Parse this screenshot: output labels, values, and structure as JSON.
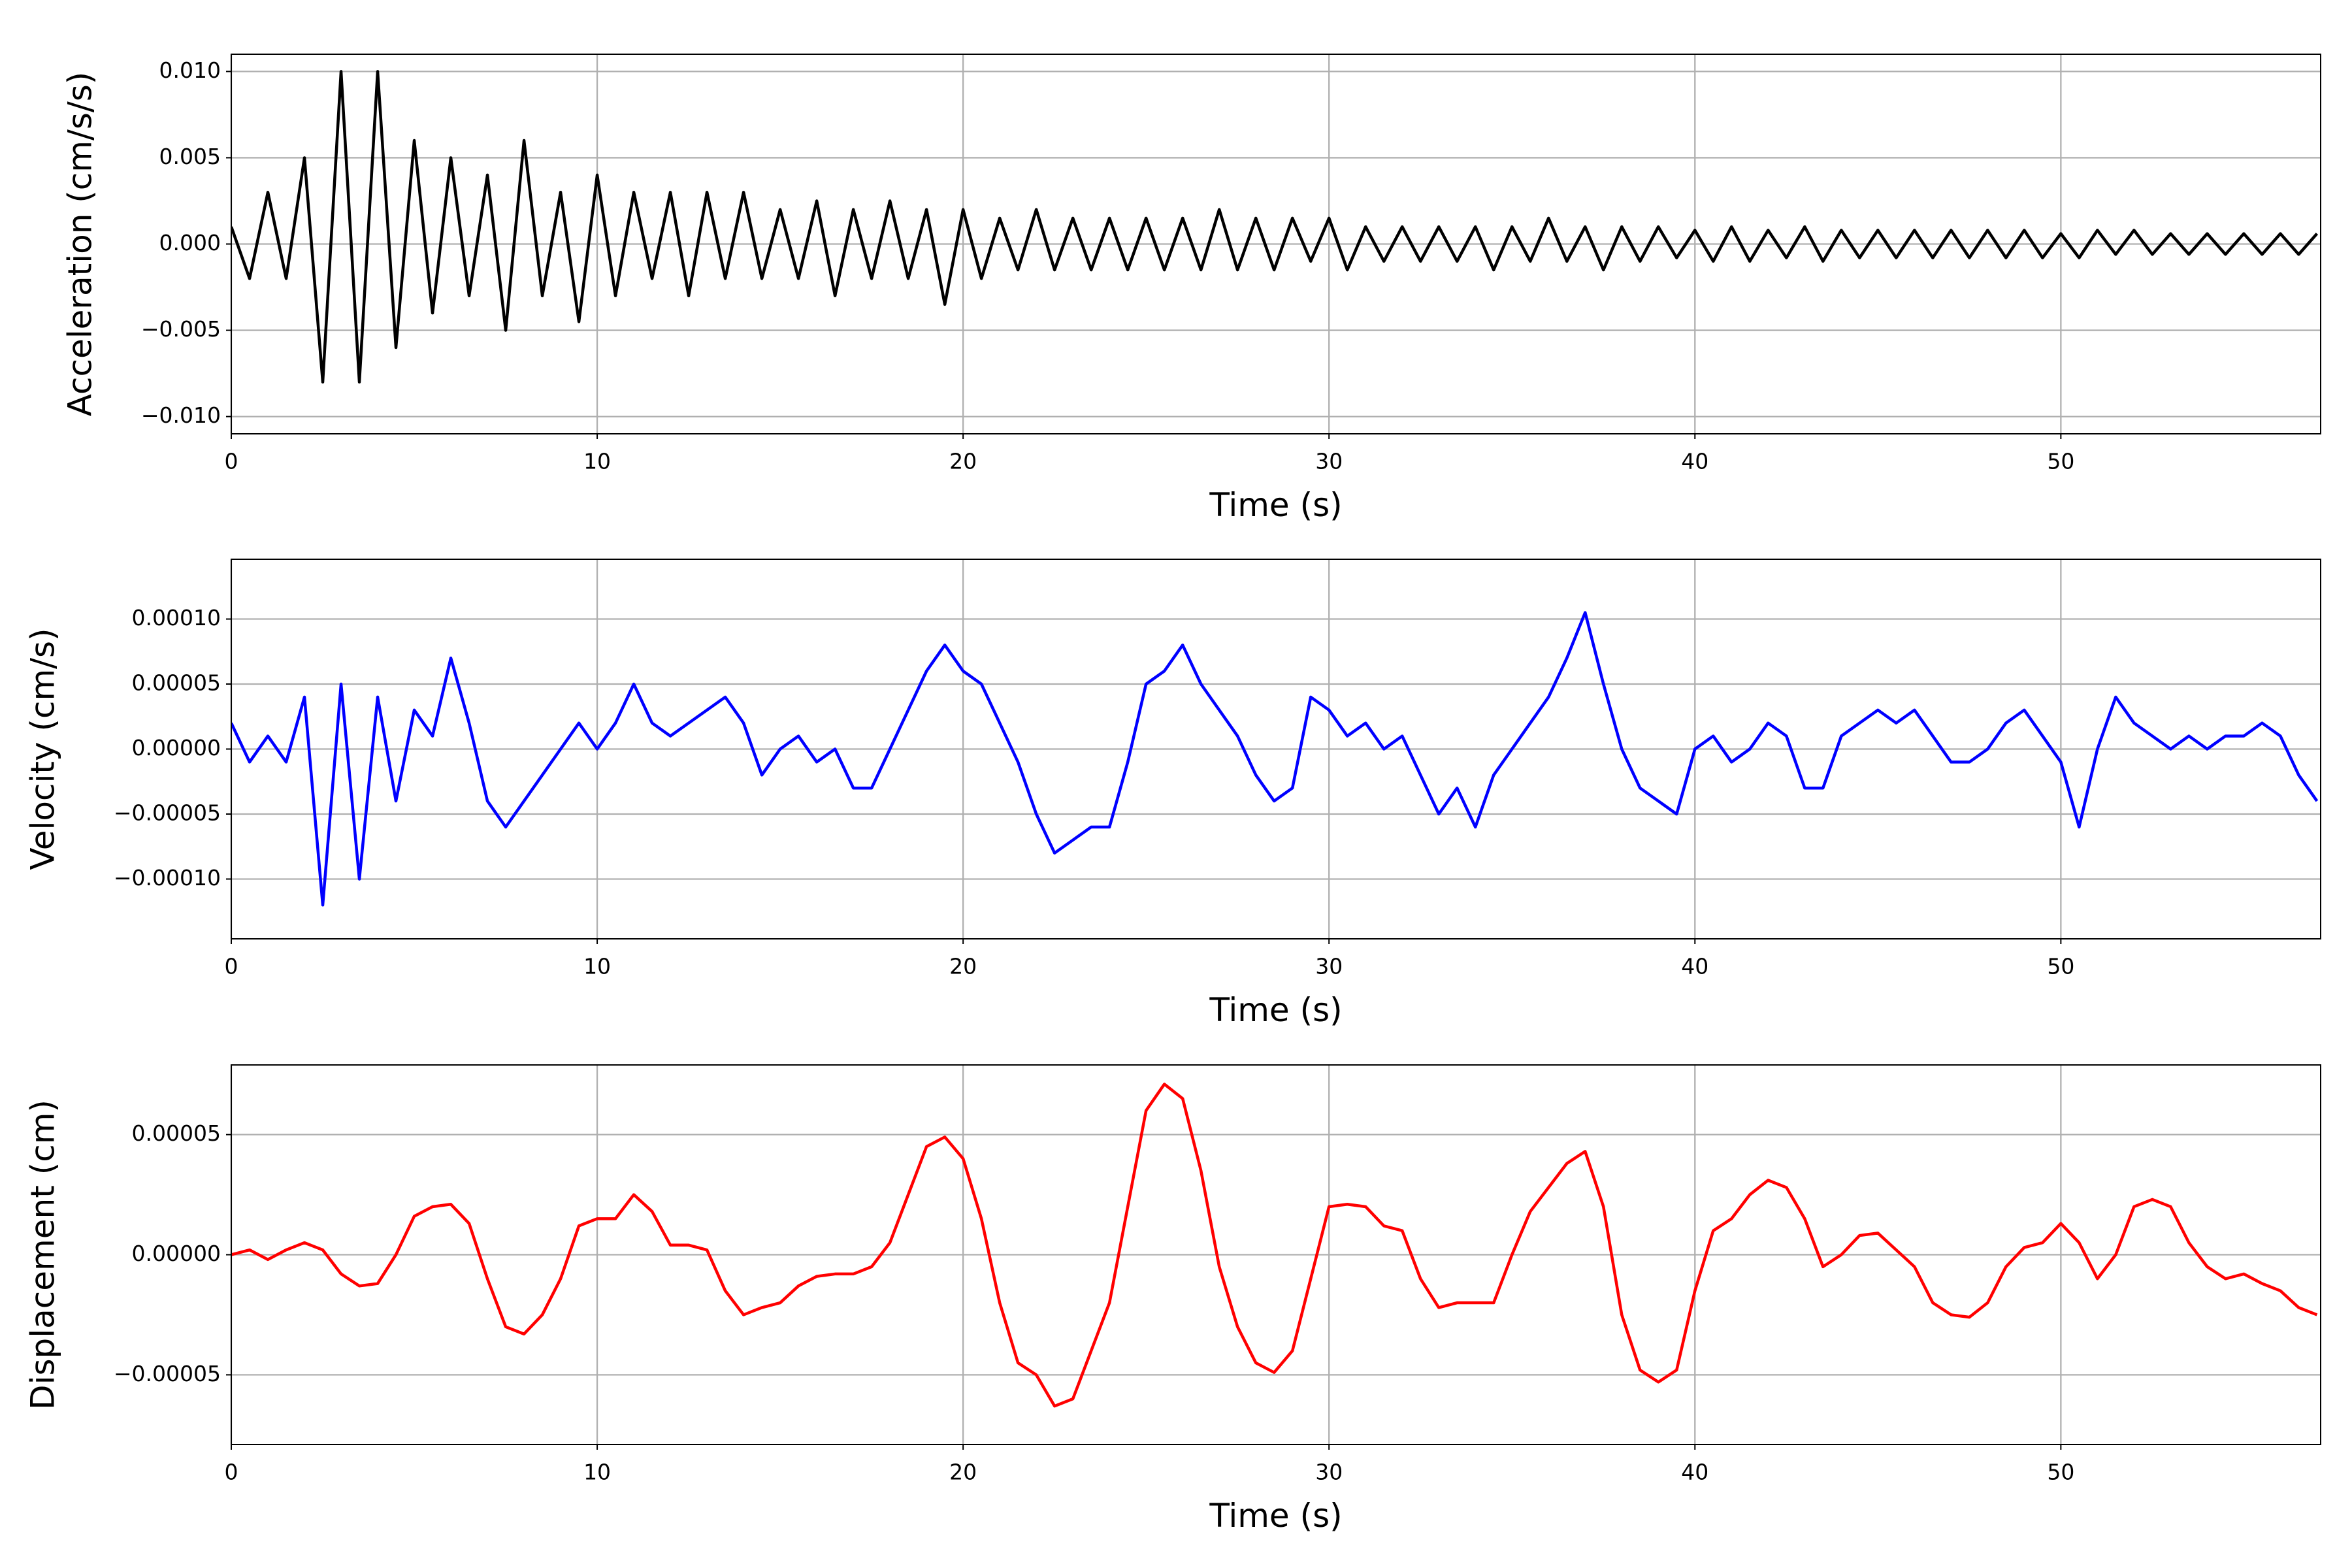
{
  "chart_data": [
    {
      "type": "line",
      "ylabel": "Acceleration (cm/s/s)",
      "xlabel": "Time (s)",
      "grid": true,
      "xlim": [
        0,
        57.1
      ],
      "xticks": [
        0,
        10,
        20,
        30,
        40,
        50
      ],
      "ylim": [
        -0.011,
        0.011
      ],
      "yticks": [
        {
          "value": -0.01,
          "label": "−0.010"
        },
        {
          "value": -0.005,
          "label": "−0.005"
        },
        {
          "value": 0,
          "label": "0.000"
        },
        {
          "value": 0.005,
          "label": "0.005"
        },
        {
          "value": 0.01,
          "label": "0.010"
        }
      ],
      "series": [
        {
          "name": "Acceleration",
          "color": "#000000",
          "x": [
            0,
            0.5,
            1,
            1.5,
            2,
            2.5,
            3,
            3.5,
            4,
            4.5,
            5,
            5.5,
            6,
            6.5,
            7,
            7.5,
            8,
            8.5,
            9,
            9.5,
            10,
            10.5,
            11,
            11.5,
            12,
            12.5,
            13,
            13.5,
            14,
            14.5,
            15,
            15.5,
            16,
            16.5,
            17,
            17.5,
            18,
            18.5,
            19,
            19.5,
            20,
            20.5,
            21,
            21.5,
            22,
            22.5,
            23,
            23.5,
            24,
            24.5,
            25,
            25.5,
            26,
            26.5,
            27,
            27.5,
            28,
            28.5,
            29,
            29.5,
            30,
            30.5,
            31,
            31.5,
            32,
            32.5,
            33,
            33.5,
            34,
            34.5,
            35,
            35.5,
            36,
            36.5,
            37,
            37.5,
            38,
            38.5,
            39,
            39.5,
            40,
            40.5,
            41,
            41.5,
            42,
            42.5,
            43,
            43.5,
            44,
            44.5,
            45,
            45.5,
            46,
            46.5,
            47,
            47.5,
            48,
            48.5,
            49,
            49.5,
            50,
            50.5,
            51,
            51.5,
            52,
            52.5,
            53,
            53.5,
            54,
            54.5,
            55,
            55.5,
            56,
            56.5,
            57
          ],
          "values": [
            0.001,
            -0.002,
            0.003,
            -0.002,
            0.005,
            -0.008,
            0.01,
            -0.008,
            0.01,
            -0.006,
            0.006,
            -0.004,
            0.005,
            -0.003,
            0.004,
            -0.005,
            0.006,
            -0.003,
            0.003,
            -0.0045,
            0.004,
            -0.003,
            0.003,
            -0.002,
            0.003,
            -0.003,
            0.003,
            -0.002,
            0.003,
            -0.002,
            0.002,
            -0.002,
            0.0025,
            -0.003,
            0.002,
            -0.002,
            0.0025,
            -0.002,
            0.002,
            -0.0035,
            0.002,
            -0.002,
            0.0015,
            -0.0015,
            0.002,
            -0.0015,
            0.0015,
            -0.0015,
            0.0015,
            -0.0015,
            0.0015,
            -0.0015,
            0.0015,
            -0.0015,
            0.002,
            -0.0015,
            0.0015,
            -0.0015,
            0.0015,
            -0.001,
            0.0015,
            -0.0015,
            0.001,
            -0.001,
            0.001,
            -0.001,
            0.001,
            -0.001,
            0.001,
            -0.0015,
            0.001,
            -0.001,
            0.0015,
            -0.001,
            0.001,
            -0.0015,
            0.001,
            -0.001,
            0.001,
            -0.0008,
            0.0008,
            -0.001,
            0.001,
            -0.001,
            0.0008,
            -0.0008,
            0.001,
            -0.001,
            0.0008,
            -0.0008,
            0.0008,
            -0.0008,
            0.0008,
            -0.0008,
            0.0008,
            -0.0008,
            0.0008,
            -0.0008,
            0.0008,
            -0.0008,
            0.0006,
            -0.0008,
            0.0008,
            -0.0006,
            0.0008,
            -0.0006,
            0.0006,
            -0.0006,
            0.0006,
            -0.0006,
            0.0006,
            -0.0006,
            0.0006,
            -0.0006,
            0.0006
          ]
        }
      ]
    },
    {
      "type": "line",
      "ylabel": "Velocity (cm/s)",
      "xlabel": "Time (s)",
      "grid": true,
      "xlim": [
        0,
        57.1
      ],
      "xticks": [
        0,
        10,
        20,
        30,
        40,
        50
      ],
      "ylim": [
        -0.000146,
        0.000146
      ],
      "yticks": [
        {
          "value": -0.0001,
          "label": "−0.00010"
        },
        {
          "value": -5e-05,
          "label": "−0.00005"
        },
        {
          "value": 0,
          "label": "0.00000"
        },
        {
          "value": 5e-05,
          "label": "0.00005"
        },
        {
          "value": 0.0001,
          "label": "0.00010"
        }
      ],
      "series": [
        {
          "name": "Velocity",
          "color": "#0000ff",
          "x": [
            0,
            0.5,
            1,
            1.5,
            2,
            2.5,
            3,
            3.5,
            4,
            4.5,
            5,
            5.5,
            6,
            6.5,
            7,
            7.5,
            8,
            8.5,
            9,
            9.5,
            10,
            10.5,
            11,
            11.5,
            12,
            12.5,
            13,
            13.5,
            14,
            14.5,
            15,
            15.5,
            16,
            16.5,
            17,
            17.5,
            18,
            18.5,
            19,
            19.5,
            20,
            20.5,
            21,
            21.5,
            22,
            22.5,
            23,
            23.5,
            24,
            24.5,
            25,
            25.5,
            26,
            26.5,
            27,
            27.5,
            28,
            28.5,
            29,
            29.5,
            30,
            30.5,
            31,
            31.5,
            32,
            32.5,
            33,
            33.5,
            34,
            34.5,
            35,
            35.5,
            36,
            36.5,
            37,
            37.5,
            38,
            38.5,
            39,
            39.5,
            40,
            40.5,
            41,
            41.5,
            42,
            42.5,
            43,
            43.5,
            44,
            44.5,
            45,
            45.5,
            46,
            46.5,
            47,
            47.5,
            48,
            48.5,
            49,
            49.5,
            50,
            50.5,
            51,
            51.5,
            52,
            52.5,
            53,
            53.5,
            54,
            54.5,
            55,
            55.5,
            56,
            56.5,
            57
          ],
          "values": [
            2e-05,
            -1e-05,
            1e-05,
            -1e-05,
            4e-05,
            -0.00012,
            5e-05,
            -0.0001,
            4e-05,
            -4e-05,
            3e-05,
            1e-05,
            7e-05,
            2e-05,
            -4e-05,
            -6e-05,
            -4e-05,
            -2e-05,
            0,
            2e-05,
            0,
            2e-05,
            5e-05,
            2e-05,
            1e-05,
            2e-05,
            3e-05,
            4e-05,
            2e-05,
            -2e-05,
            0,
            1e-05,
            -1e-05,
            0,
            -3e-05,
            -3e-05,
            0,
            3e-05,
            6e-05,
            8e-05,
            6e-05,
            5e-05,
            2e-05,
            -1e-05,
            -5e-05,
            -8e-05,
            -7e-05,
            -6e-05,
            -6e-05,
            -1e-05,
            5e-05,
            6e-05,
            8e-05,
            5e-05,
            3e-05,
            1e-05,
            -2e-05,
            -4e-05,
            -3e-05,
            4e-05,
            3e-05,
            1e-05,
            2e-05,
            0,
            1e-05,
            -2e-05,
            -5e-05,
            -3e-05,
            -6e-05,
            -2e-05,
            0,
            2e-05,
            4e-05,
            7e-05,
            0.000105,
            5e-05,
            0,
            -3e-05,
            -4e-05,
            -5e-05,
            0,
            1e-05,
            -1e-05,
            0,
            2e-05,
            1e-05,
            -3e-05,
            -3e-05,
            1e-05,
            2e-05,
            3e-05,
            2e-05,
            3e-05,
            1e-05,
            -1e-05,
            -1e-05,
            0,
            2e-05,
            3e-05,
            1e-05,
            -1e-05,
            -6e-05,
            0,
            4e-05,
            2e-05,
            1e-05,
            0,
            1e-05,
            0,
            1e-05,
            1e-05,
            2e-05,
            1e-05,
            -2e-05,
            -4e-05
          ]
        }
      ]
    },
    {
      "type": "line",
      "ylabel": "Displacement (cm)",
      "xlabel": "Time (s)",
      "grid": true,
      "xlim": [
        0,
        57.1
      ],
      "xticks": [
        0,
        10,
        20,
        30,
        40,
        50
      ],
      "ylim": [
        -7.9e-05,
        7.9e-05
      ],
      "yticks": [
        {
          "value": -5e-05,
          "label": "−0.00005"
        },
        {
          "value": 0,
          "label": "0.00000"
        },
        {
          "value": 5e-05,
          "label": "0.00005"
        }
      ],
      "series": [
        {
          "name": "Displacement",
          "color": "#ff0000",
          "x": [
            0,
            0.5,
            1,
            1.5,
            2,
            2.5,
            3,
            3.5,
            4,
            4.5,
            5,
            5.5,
            6,
            6.5,
            7,
            7.5,
            8,
            8.5,
            9,
            9.5,
            10,
            10.5,
            11,
            11.5,
            12,
            12.5,
            13,
            13.5,
            14,
            14.5,
            15,
            15.5,
            16,
            16.5,
            17,
            17.5,
            18,
            18.5,
            19,
            19.5,
            20,
            20.5,
            21,
            21.5,
            22,
            22.5,
            23,
            23.5,
            24,
            24.5,
            25,
            25.5,
            26,
            26.5,
            27,
            27.5,
            28,
            28.5,
            29,
            29.5,
            30,
            30.5,
            31,
            31.5,
            32,
            32.5,
            33,
            33.5,
            34,
            34.5,
            35,
            35.5,
            36,
            36.5,
            37,
            37.5,
            38,
            38.5,
            39,
            39.5,
            40,
            40.5,
            41,
            41.5,
            42,
            42.5,
            43,
            43.5,
            44,
            44.5,
            45,
            45.5,
            46,
            46.5,
            47,
            47.5,
            48,
            48.5,
            49,
            49.5,
            50,
            50.5,
            51,
            51.5,
            52,
            52.5,
            53,
            53.5,
            54,
            54.5,
            55,
            55.5,
            56,
            56.5,
            57
          ],
          "values": [
            0,
            2e-06,
            -2e-06,
            2e-06,
            5e-06,
            2e-06,
            -8e-06,
            -1.3e-05,
            -1.2e-05,
            0,
            1.6e-05,
            2e-05,
            2.1e-05,
            1.3e-05,
            -1e-05,
            -3e-05,
            -3.3e-05,
            -2.5e-05,
            -1e-05,
            1.2e-05,
            1.5e-05,
            1.5e-05,
            2.5e-05,
            1.8e-05,
            4e-06,
            4e-06,
            2e-06,
            -1.5e-05,
            -2.5e-05,
            -2.2e-05,
            -2e-05,
            -1.3e-05,
            -9e-06,
            -8e-06,
            -8e-06,
            -5e-06,
            5e-06,
            2.5e-05,
            4.5e-05,
            4.9e-05,
            4e-05,
            1.5e-05,
            -2e-05,
            -4.5e-05,
            -5e-05,
            -6.3e-05,
            -6e-05,
            -4e-05,
            -2e-05,
            2e-05,
            6e-05,
            7.1e-05,
            6.5e-05,
            3.5e-05,
            -5e-06,
            -3e-05,
            -4.5e-05,
            -4.9e-05,
            -4e-05,
            -1e-05,
            2e-05,
            2.1e-05,
            2e-05,
            1.2e-05,
            1e-05,
            -1e-05,
            -2.2e-05,
            -2e-05,
            -2e-05,
            -2e-05,
            0,
            1.8e-05,
            2.8e-05,
            3.8e-05,
            4.3e-05,
            2e-05,
            -2.5e-05,
            -4.8e-05,
            -5.3e-05,
            -4.8e-05,
            -1.5e-05,
            1e-05,
            1.5e-05,
            2.5e-05,
            3.1e-05,
            2.8e-05,
            1.5e-05,
            -5e-06,
            0,
            8e-06,
            9e-06,
            2e-06,
            -5e-06,
            -2e-05,
            -2.5e-05,
            -2.6e-05,
            -2e-05,
            -5e-06,
            3e-06,
            5e-06,
            1.3e-05,
            5e-06,
            -1e-05,
            0,
            2e-05,
            2.3e-05,
            2e-05,
            5e-06,
            -5e-06,
            -1e-05,
            -8e-06,
            -1.2e-05,
            -1.5e-05,
            -2.2e-05,
            -2.5e-05
          ]
        }
      ]
    }
  ]
}
